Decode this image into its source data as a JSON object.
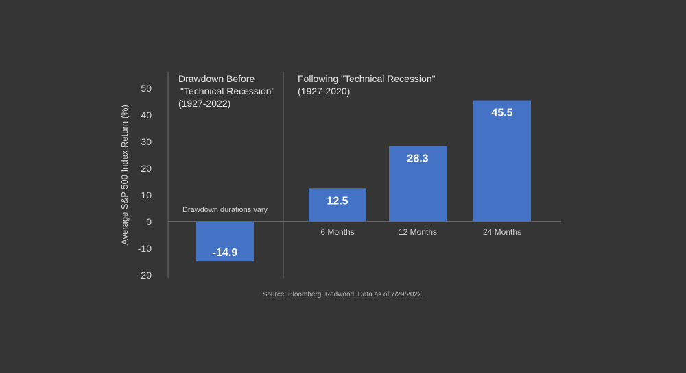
{
  "chart_data": {
    "type": "bar",
    "ylabel": "Average S&P 500 Index Return (%)",
    "ylim": [
      -20,
      50
    ],
    "yticks": [
      50,
      40,
      30,
      20,
      10,
      0,
      -10,
      -20
    ],
    "grid": false,
    "bar_color": "#4472c4",
    "background_color": "#353535",
    "panels": [
      {
        "title_lines": [
          "Drawdown Before",
          "\"Technical Recession\"",
          "(1927-2022)"
        ],
        "note": "Drawdown durations vary",
        "categories": [
          ""
        ],
        "values": [
          -14.9
        ],
        "labels": [
          "-14.9"
        ]
      },
      {
        "title_lines": [
          "Following \"Technical Recession\"",
          "(1927-2020)"
        ],
        "categories": [
          "6 Months",
          "12 Months",
          "24 Months"
        ],
        "values": [
          12.5,
          28.3,
          45.5
        ],
        "labels": [
          "12.5",
          "28.3",
          "45.5"
        ]
      }
    ],
    "source": "Source: Bloomberg, Redwood. Data as of 7/29/2022."
  }
}
